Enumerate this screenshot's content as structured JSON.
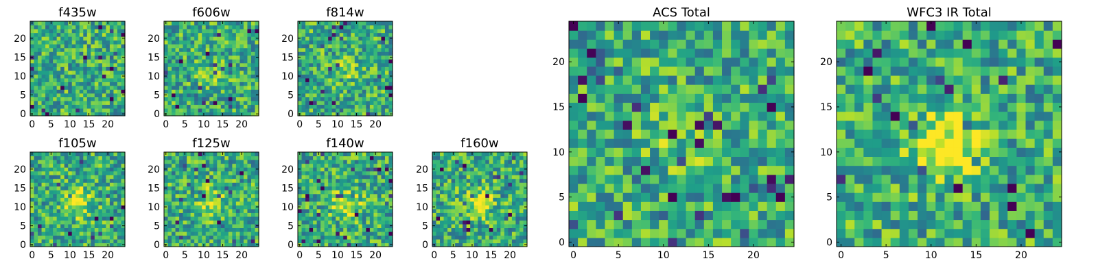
{
  "chart_data": [
    {
      "type": "heatmap",
      "title": "f435w",
      "nx": 25,
      "ny": 25,
      "xlim": [
        -0.5,
        24.5
      ],
      "ylim": [
        -0.5,
        24.5
      ],
      "xticks": [
        0,
        5,
        10,
        15,
        20
      ],
      "yticks": [
        0,
        5,
        10,
        15,
        20
      ],
      "colormap": "viridis",
      "source_peak": 0.0
    },
    {
      "type": "heatmap",
      "title": "f606w",
      "nx": 25,
      "ny": 25,
      "xlim": [
        -0.5,
        24.5
      ],
      "ylim": [
        -0.5,
        24.5
      ],
      "xticks": [
        0,
        5,
        10,
        15,
        20
      ],
      "yticks": [
        0,
        5,
        10,
        15,
        20
      ],
      "colormap": "viridis",
      "source_peak": 0.1
    },
    {
      "type": "heatmap",
      "title": "f814w",
      "nx": 25,
      "ny": 25,
      "xlim": [
        -0.5,
        24.5
      ],
      "ylim": [
        -0.5,
        24.5
      ],
      "xticks": [
        0,
        5,
        10,
        15,
        20
      ],
      "yticks": [
        0,
        5,
        10,
        15,
        20
      ],
      "colormap": "viridis",
      "source_peak": 0.15
    },
    {
      "type": "heatmap",
      "title": "f105w",
      "nx": 25,
      "ny": 25,
      "xlim": [
        -0.5,
        24.5
      ],
      "ylim": [
        -0.5,
        24.5
      ],
      "xticks": [
        0,
        5,
        10,
        15,
        20
      ],
      "yticks": [
        0,
        5,
        10,
        15,
        20
      ],
      "colormap": "viridis",
      "source_peak": 0.35
    },
    {
      "type": "heatmap",
      "title": "f125w",
      "nx": 25,
      "ny": 25,
      "xlim": [
        -0.5,
        24.5
      ],
      "ylim": [
        -0.5,
        24.5
      ],
      "xticks": [
        0,
        5,
        10,
        15,
        20
      ],
      "yticks": [
        0,
        5,
        10,
        15,
        20
      ],
      "colormap": "viridis",
      "source_peak": 0.3
    },
    {
      "type": "heatmap",
      "title": "f140w",
      "nx": 25,
      "ny": 25,
      "xlim": [
        -0.5,
        24.5
      ],
      "ylim": [
        -0.5,
        24.5
      ],
      "xticks": [
        0,
        5,
        10,
        15,
        20
      ],
      "yticks": [
        0,
        5,
        10,
        15,
        20
      ],
      "colormap": "viridis",
      "source_peak": 0.35
    },
    {
      "type": "heatmap",
      "title": "f160w",
      "nx": 25,
      "ny": 25,
      "xlim": [
        -0.5,
        24.5
      ],
      "ylim": [
        -0.5,
        24.5
      ],
      "xticks": [
        0,
        5,
        10,
        15,
        20
      ],
      "yticks": [
        0,
        5,
        10,
        15,
        20
      ],
      "colormap": "viridis",
      "source_peak": 0.35
    },
    {
      "type": "heatmap",
      "title": "ACS Total",
      "nx": 25,
      "ny": 25,
      "xlim": [
        -0.5,
        24.5
      ],
      "ylim": [
        -0.5,
        24.5
      ],
      "xticks": [
        0,
        5,
        10,
        15,
        20
      ],
      "yticks": [
        0,
        5,
        10,
        15,
        20
      ],
      "colormap": "viridis",
      "source_peak": 0.12
    },
    {
      "type": "heatmap",
      "title": "WFC3 IR Total",
      "nx": 25,
      "ny": 25,
      "xlim": [
        -0.5,
        24.5
      ],
      "ylim": [
        -0.5,
        24.5
      ],
      "xticks": [
        0,
        5,
        10,
        15,
        20
      ],
      "yticks": [
        0,
        5,
        10,
        15,
        20
      ],
      "colormap": "viridis",
      "source_peak": 0.45
    }
  ]
}
